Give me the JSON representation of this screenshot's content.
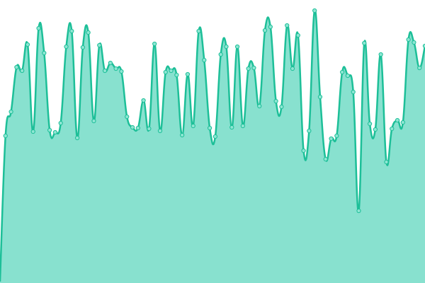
{
  "chart_data": {
    "type": "area",
    "values": [
      2,
      208,
      242,
      305,
      300,
      337,
      214,
      360,
      325,
      216,
      213,
      226,
      334,
      356,
      205,
      333,
      354,
      229,
      336,
      300,
      311,
      303,
      299,
      235,
      220,
      219,
      258,
      218,
      338,
      215,
      298,
      300,
      294,
      209,
      295,
      222,
      356,
      315,
      219,
      207,
      323,
      334,
      220,
      334,
      222,
      303,
      304,
      250,
      357,
      362,
      257,
      249,
      364,
      303,
      350,
      187,
      215,
      385,
      263,
      175,
      204,
      208,
      298,
      293,
      270,
      102,
      339,
      225,
      217,
      323,
      171,
      218,
      230,
      227,
      344,
      340,
      304,
      335
    ],
    "ylim": [
      0,
      400
    ],
    "color": "#1dbf98",
    "fill": "#88e1cf",
    "marker_fill": "#8ee6d3"
  }
}
